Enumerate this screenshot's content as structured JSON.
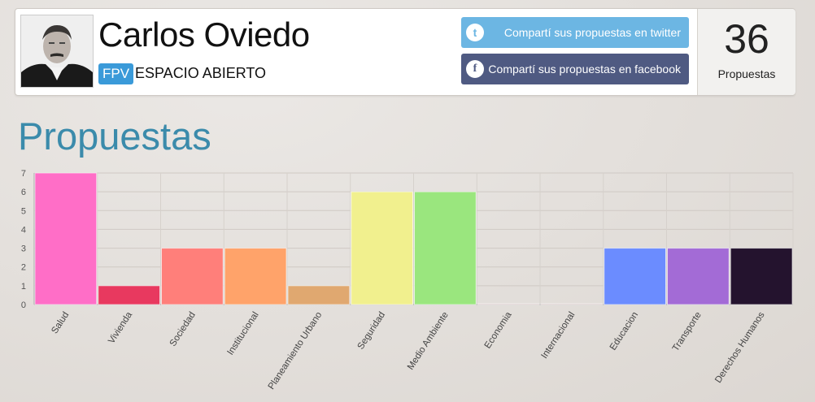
{
  "profile": {
    "name": "Carlos Oviedo",
    "party_badge": "FPV",
    "party_name": "ESPACIO ABIERTO",
    "twitter_label": "Compartí sus propuestas en twitter",
    "facebook_label": "Compartí sus propuestas en facebook",
    "count": "36",
    "count_label": "Propuestas"
  },
  "section_title": "Propuestas",
  "chart_data": {
    "type": "bar",
    "categories": [
      "Salud",
      "Vivienda",
      "Sociedad",
      "Institucional",
      "Planeamiento Urbano",
      "Seguridad",
      "Medio Ambiente",
      "Economia",
      "Internacional",
      "Educacion",
      "Transporte",
      "Derechos Humanos"
    ],
    "values": [
      7,
      1,
      3,
      3,
      1,
      6,
      6,
      0,
      0,
      3,
      3,
      3
    ],
    "colors": [
      "#ff6ec7",
      "#e8395f",
      "#ff7f7a",
      "#ffa36a",
      "#e0a870",
      "#f1f08e",
      "#9ae67e",
      "#c8a8a8",
      "#c8a8a8",
      "#6b8cff",
      "#a36bd6",
      "#24132e"
    ],
    "yticks": [
      "0",
      "1",
      "2",
      "3",
      "4",
      "5",
      "6",
      "7"
    ],
    "ylim": [
      0,
      7
    ],
    "grid": true,
    "title": "",
    "xlabel": "",
    "ylabel": ""
  }
}
